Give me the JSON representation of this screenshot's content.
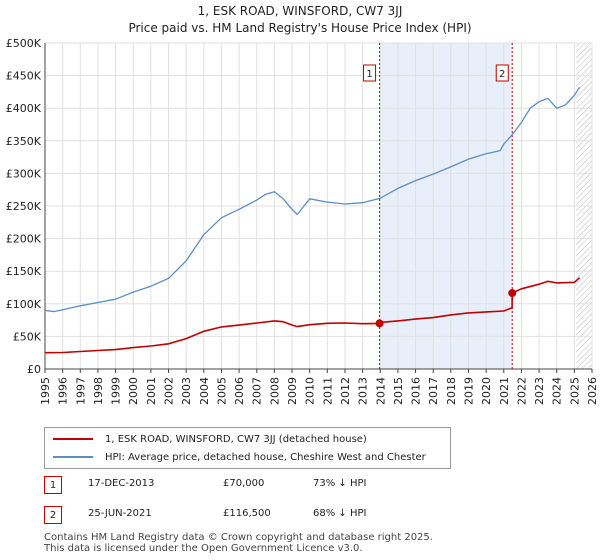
{
  "title_line1": "1, ESK ROAD, WINSFORD, CW7 3JJ",
  "title_line2": "Price paid vs. HM Land Registry's House Price Index (HPI)",
  "chart_data": {
    "type": "line",
    "xlim": [
      1995,
      2026
    ],
    "ylim": [
      0,
      500000
    ],
    "x_ticks": [
      1995,
      1996,
      1997,
      1998,
      1999,
      2000,
      2001,
      2002,
      2003,
      2004,
      2005,
      2006,
      2007,
      2008,
      2009,
      2010,
      2011,
      2012,
      2013,
      2014,
      2015,
      2016,
      2017,
      2018,
      2019,
      2020,
      2021,
      2022,
      2023,
      2024,
      2025,
      2026
    ],
    "y_ticks": [
      {
        "value": 0,
        "label": "£0"
      },
      {
        "value": 50000,
        "label": "£50K"
      },
      {
        "value": 100000,
        "label": "£100K"
      },
      {
        "value": 150000,
        "label": "£150K"
      },
      {
        "value": 200000,
        "label": "£200K"
      },
      {
        "value": 250000,
        "label": "£250K"
      },
      {
        "value": 300000,
        "label": "£300K"
      },
      {
        "value": 350000,
        "label": "£350K"
      },
      {
        "value": 400000,
        "label": "£400K"
      },
      {
        "value": 450000,
        "label": "£450K"
      },
      {
        "value": 500000,
        "label": "£500K"
      }
    ],
    "shaded_range": [
      2013.96,
      2021.48
    ],
    "forecast_start": 2025.1,
    "series": [
      {
        "name": "1, ESK ROAD, WINSFORD, CW7 3JJ (detached house)",
        "color": "#c00000",
        "x": [
          1995,
          1996,
          1997,
          1998,
          1999,
          2000,
          2001,
          2002,
          2003,
          2004,
          2005,
          2006,
          2007,
          2008,
          2008.5,
          2009,
          2009.3,
          2010,
          2011,
          2012,
          2013,
          2013.96,
          2014,
          2015,
          2016,
          2017,
          2018,
          2019,
          2020,
          2021,
          2021.47,
          2021.48,
          2022,
          2023,
          2023.5,
          2024,
          2025,
          2025.3
        ],
        "values": [
          25000,
          25300,
          26800,
          28400,
          29800,
          32800,
          35300,
          38600,
          46700,
          57800,
          64600,
          67300,
          70600,
          73800,
          72500,
          67500,
          65000,
          68000,
          70100,
          70500,
          69500,
          70000,
          71400,
          73700,
          76500,
          78900,
          83000,
          86100,
          87500,
          89000,
          94000,
          116500,
          123000,
          130000,
          134500,
          132000,
          133000,
          140000
        ]
      },
      {
        "name": "HPI: Average price, detached house, Cheshire West and Chester",
        "color": "#5b8ec6",
        "x": [
          1995,
          1995.5,
          1996,
          1997,
          1998,
          1999,
          2000,
          2001,
          2002,
          2003,
          2004,
          2005,
          2006,
          2007,
          2007.5,
          2008,
          2008.5,
          2009,
          2009.3,
          2010,
          2011,
          2012,
          2013,
          2014,
          2015,
          2016,
          2017,
          2018,
          2019,
          2020,
          2020.8,
          2021,
          2021.5,
          2022,
          2022.5,
          2023,
          2023.5,
          2024,
          2024.5,
          2025,
          2025.3
        ],
        "values": [
          90000,
          88000,
          91000,
          97000,
          102000,
          107000,
          118000,
          127000,
          139000,
          166000,
          206000,
          232000,
          245000,
          259000,
          268000,
          272000,
          261000,
          245000,
          237000,
          261000,
          256000,
          253000,
          255000,
          262000,
          277000,
          289000,
          299000,
          310000,
          322000,
          330000,
          335000,
          345000,
          360000,
          378000,
          400000,
          410000,
          415000,
          400000,
          405000,
          420000,
          432000
        ]
      }
    ],
    "markers": [
      {
        "label": "1",
        "x": 2013.96,
        "y": 70000
      },
      {
        "label": "2",
        "x": 2021.48,
        "y": 116500
      }
    ]
  },
  "legend": [
    {
      "label": "1, ESK ROAD, WINSFORD, CW7 3JJ (detached house)",
      "color": "#c00000"
    },
    {
      "label": "HPI: Average price, detached house, Cheshire West and Chester",
      "color": "#5b8ec6"
    }
  ],
  "transactions": [
    {
      "num": "1",
      "date": "17-DEC-2013",
      "price": "£70,000",
      "hpi": "73% ↓ HPI"
    },
    {
      "num": "2",
      "date": "25-JUN-2021",
      "price": "£116,500",
      "hpi": "68% ↓ HPI"
    }
  ],
  "footer_line1": "Contains HM Land Registry data © Crown copyright and database right 2025.",
  "footer_line2": "This data is licensed under the Open Government Licence v3.0."
}
